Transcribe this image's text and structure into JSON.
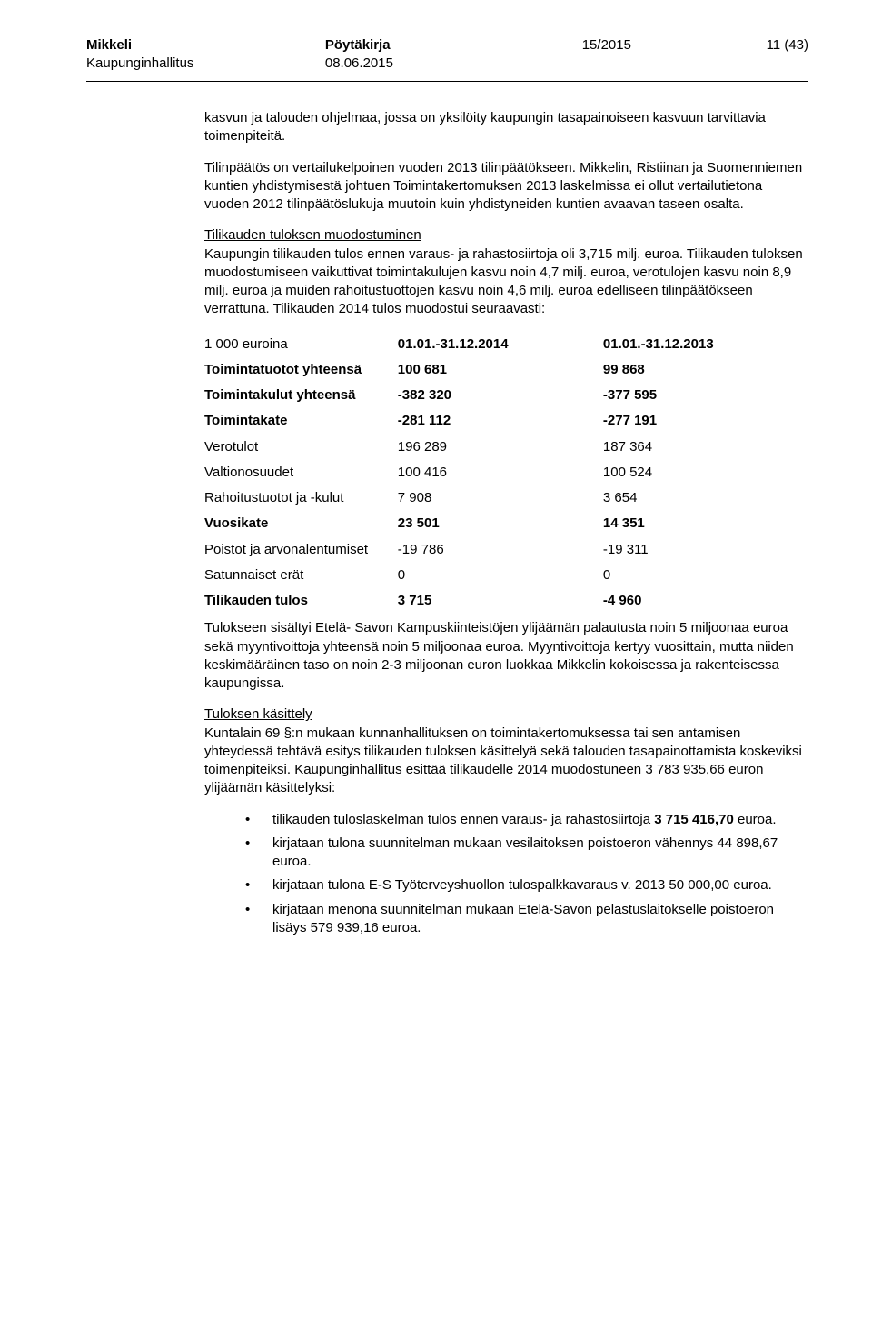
{
  "header": {
    "org_line1": "Mikkeli",
    "org_line2": "Kaupunginhallitus",
    "doc_type": "Pöytäkirja",
    "date": "08.06.2015",
    "doc_number": "15/2015",
    "page_info": "11 (43)"
  },
  "intro": {
    "p1": "kasvun ja talouden ohjelmaa, jossa on yksilöity kaupungin tasapainoiseen kasvuun tarvittavia toimenpiteitä.",
    "p2": "Tilinpäätös on vertailukelpoinen vuoden 2013 tilinpäätökseen. Mikkelin, Ristiinan ja Suomenniemen kuntien yhdistymisestä johtuen Toimintakertomuksen 2013 laskelmissa ei ollut vertailutietona vuoden 2012 tilinpäätöslukuja muutoin kuin yhdistyneiden kuntien avaavan taseen osalta."
  },
  "section1": {
    "heading": "Tilikauden tuloksen muodostuminen",
    "body": "Kaupungin tilikauden tulos ennen varaus- ja rahastosiirtoja oli 3,715 milj. euroa. Tilikauden tuloksen muodostumiseen vaikuttivat toimintakulujen kasvu noin 4,7 milj. euroa, verotulojen kasvu noin 8,9 milj. euroa ja muiden rahoitustuottojen kasvu noin 4,6 milj. euroa edelliseen tilinpäätökseen verrattuna. Tilikauden 2014 tulos muodostui seuraavasti:"
  },
  "fin_table": {
    "header_label": "1 000 euroina",
    "header_col1": "01.01.-31.12.2014",
    "header_col2": "01.01.-31.12.2013",
    "rows": [
      {
        "label": "Toimintatuotot yhteensä",
        "v1": "100 681",
        "v2": "99 868",
        "bold": true
      },
      {
        "label": "Toimintakulut yhteensä",
        "v1": "-382 320",
        "v2": "-377 595",
        "bold": true
      },
      {
        "label": "Toimintakate",
        "v1": "-281 112",
        "v2": "-277 191",
        "bold": true
      },
      {
        "label": "Verotulot",
        "v1": "196 289",
        "v2": "187 364",
        "bold": false
      },
      {
        "label": "Valtionosuudet",
        "v1": "100 416",
        "v2": "100 524",
        "bold": false
      },
      {
        "label": "Rahoitustuotot ja -kulut",
        "v1": "7 908",
        "v2": "3 654",
        "bold": false
      },
      {
        "label": "Vuosikate",
        "v1": "23 501",
        "v2": "14 351",
        "bold": true
      },
      {
        "label": "Poistot ja arvonalentumiset",
        "v1": "-19 786",
        "v2": "-19 311",
        "bold": false
      },
      {
        "label": "Satunnaiset erät",
        "v1": "0",
        "v2": "0",
        "bold": false
      },
      {
        "label": "Tilikauden tulos",
        "v1": "3 715",
        "v2": "-4 960",
        "bold": true
      }
    ]
  },
  "after_table": {
    "p1": "Tulokseen sisältyi Etelä- Savon Kampuskiinteistöjen ylijäämän palautusta noin 5 miljoonaa euroa sekä myyntivoittoja yhteensä noin 5 miljoonaa euroa. Myyntivoittoja kertyy vuosittain, mutta niiden keskimääräinen taso on noin 2-3 miljoonan euron luokkaa Mikkelin kokoisessa ja rakenteisessa kaupungissa."
  },
  "section2": {
    "heading": "Tuloksen käsittely",
    "body": "Kuntalain 69 §:n mukaan kunnanhallituksen on toimintakertomuksessa tai sen antamisen yhteydessä tehtävä esitys tilikauden tuloksen käsittelyä sekä talouden tasapainottamista koskeviksi toimenpiteiksi. Kaupunginhallitus esittää tilikaudelle 2014 muodostuneen 3 783 935,66 euron ylijäämän käsittelyksi:"
  },
  "bullets": {
    "b1_pre": "tilikauden tuloslaskelman tulos ennen varaus- ja rahastosiirtoja ",
    "b1_bold": "3 715 416,70 ",
    "b1_post": "euroa.",
    "b2": "kirjataan tulona suunnitelman mukaan vesilaitoksen poistoeron vähennys 44 898,67 euroa.",
    "b3": "kirjataan tulona E-S Työterveyshuollon tulospalkkavaraus v. 2013 50 000,00 euroa.",
    "b4": "kirjataan menona suunnitelman mukaan Etelä-Savon pelastuslaitokselle poistoeron lisäys 579 939,16 euroa."
  }
}
